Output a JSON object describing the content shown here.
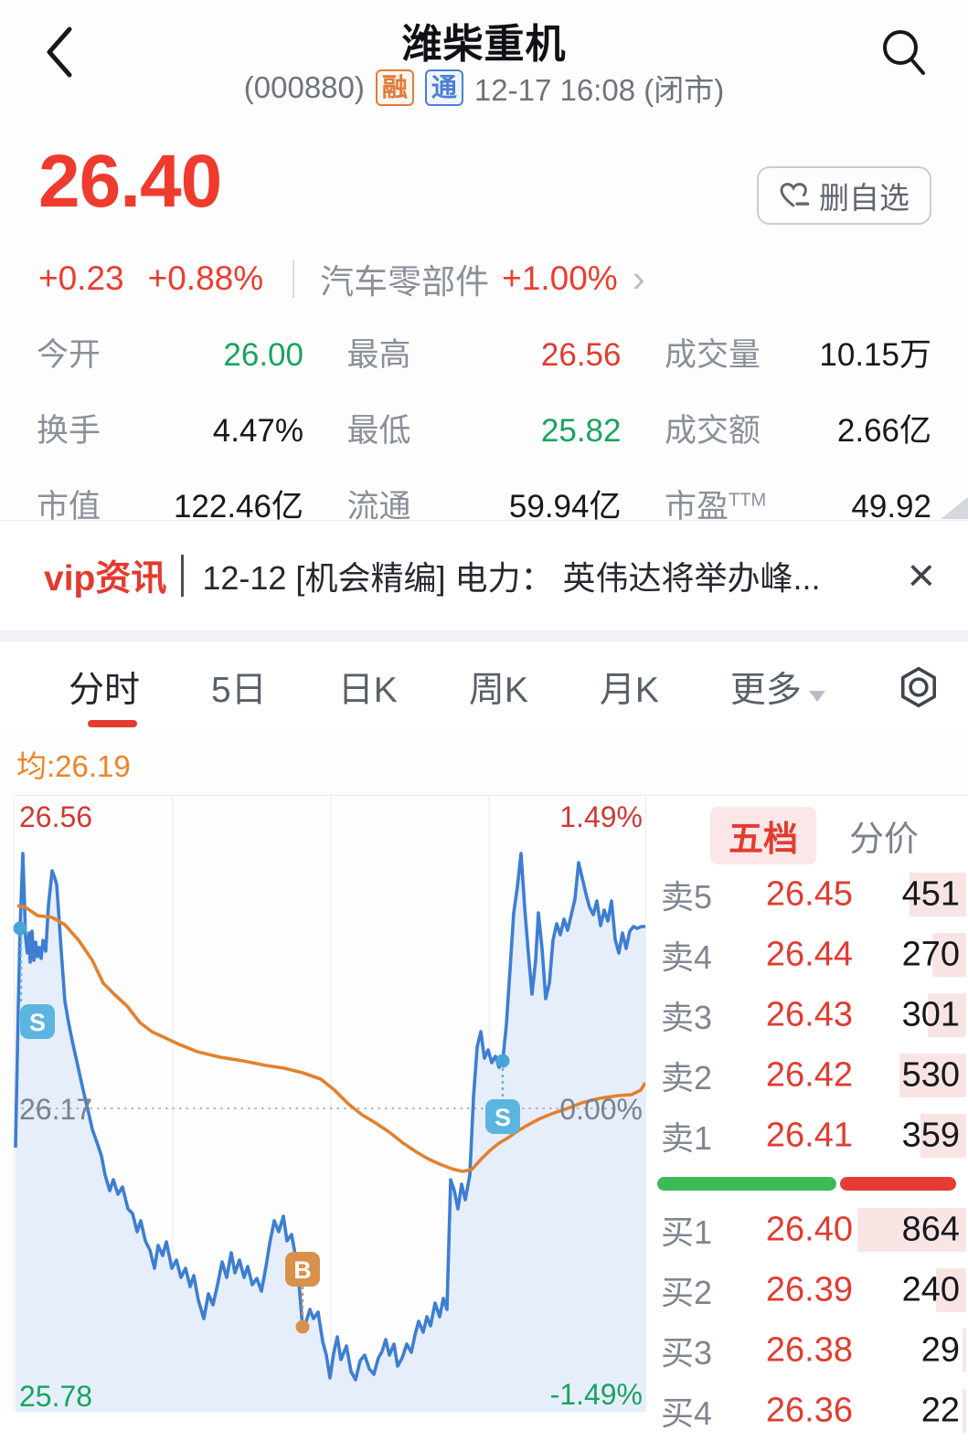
{
  "header": {
    "title": "潍柴重机",
    "code": "(000880)",
    "badge_margin": "融",
    "badge_connect": "通",
    "datetime": "12-17 16:08 (闭市)"
  },
  "quote": {
    "price": "26.40",
    "change": "+0.23",
    "change_pct": "+0.88%",
    "sector": "汽车零部件",
    "sector_pct": "+1.00%",
    "sector_chevron": "›",
    "watchlist_btn": "删自选"
  },
  "stats": [
    {
      "label": "今开",
      "value": "26.00"
    },
    {
      "label": "最高",
      "value": "26.56"
    },
    {
      "label": "成交量",
      "value": "10.15万"
    },
    {
      "label": "换手",
      "value": "4.47%"
    },
    {
      "label": "最低",
      "value": "25.82"
    },
    {
      "label": "成交额",
      "value": "2.66亿"
    },
    {
      "label": "市值",
      "value": "122.46亿"
    },
    {
      "label": "流通",
      "value": "59.94亿"
    },
    {
      "label": "市盈",
      "sup": "TTM",
      "value": "49.92"
    }
  ],
  "news": {
    "tag": "vip资讯",
    "text": "12-12 [机会精编] 电力： 英伟达将举办峰...",
    "close": "×"
  },
  "tabs": [
    {
      "label": "分时"
    },
    {
      "label": "5日"
    },
    {
      "label": "日K"
    },
    {
      "label": "周K"
    },
    {
      "label": "月K"
    },
    {
      "label": "更多"
    }
  ],
  "chart": {
    "avg_label": "均:26.19",
    "top_price": "26.56",
    "top_pct": "1.49%",
    "mid_price": "26.17",
    "mid_pct": "0.00%",
    "bottom_price": "25.78",
    "bottom_pct": "-1.49%",
    "markers": [
      {
        "label": "S"
      },
      {
        "label": "S"
      },
      {
        "label": "B"
      }
    ]
  },
  "chart_data": {
    "type": "line",
    "title": "分时 (intraday minute chart)",
    "open": 26.0,
    "high": 26.56,
    "low": 25.82,
    "close": 26.4,
    "avg": 26.19,
    "prev_close": 26.17,
    "ylim_price": [
      25.78,
      26.56
    ],
    "ylim_pct": [
      -1.49,
      1.49
    ],
    "grid": true,
    "series": [
      {
        "name": "price",
        "color": "#3d7ed3",
        "points": [
          [
            1,
            385
          ],
          [
            4,
            230
          ],
          [
            6,
            145
          ],
          [
            9,
            63
          ],
          [
            12,
            155
          ],
          [
            14,
            172
          ],
          [
            16,
            150
          ],
          [
            17,
            182
          ],
          [
            19,
            148
          ],
          [
            21,
            180
          ],
          [
            23,
            160
          ],
          [
            25,
            176
          ],
          [
            27,
            166
          ],
          [
            29,
            178
          ],
          [
            31,
            158
          ],
          [
            34,
            170
          ],
          [
            37,
            120
          ],
          [
            41,
            82
          ],
          [
            44,
            90
          ],
          [
            46,
            97
          ],
          [
            49,
            140
          ],
          [
            51,
            170
          ],
          [
            55,
            225
          ],
          [
            59,
            248
          ],
          [
            63,
            268
          ],
          [
            69,
            295
          ],
          [
            75,
            322
          ],
          [
            81,
            347
          ],
          [
            85,
            365
          ],
          [
            91,
            382
          ],
          [
            95,
            394
          ],
          [
            99,
            415
          ],
          [
            104,
            432
          ],
          [
            108,
            420
          ],
          [
            113,
            436
          ],
          [
            118,
            428
          ],
          [
            124,
            452
          ],
          [
            129,
            457
          ],
          [
            134,
            477
          ],
          [
            138,
            465
          ],
          [
            143,
            487
          ],
          [
            148,
            497
          ],
          [
            153,
            517
          ],
          [
            157,
            492
          ],
          [
            162,
            503
          ],
          [
            166,
            488
          ],
          [
            172,
            517
          ],
          [
            177,
            508
          ],
          [
            182,
            527
          ],
          [
            187,
            517
          ],
          [
            192,
            537
          ],
          [
            196,
            525
          ],
          [
            201,
            552
          ],
          [
            207,
            572
          ],
          [
            212,
            545
          ],
          [
            217,
            557
          ],
          [
            222,
            535
          ],
          [
            227,
            510
          ],
          [
            232,
            527
          ],
          [
            237,
            500
          ],
          [
            241,
            522
          ],
          [
            246,
            508
          ],
          [
            251,
            527
          ],
          [
            255,
            515
          ],
          [
            260,
            535
          ],
          [
            265,
            528
          ],
          [
            270,
            542
          ],
          [
            275,
            515
          ],
          [
            279,
            490
          ],
          [
            284,
            465
          ],
          [
            289,
            477
          ],
          [
            294,
            460
          ],
          [
            298,
            487
          ],
          [
            303,
            480
          ],
          [
            307,
            502
          ],
          [
            311,
            532
          ],
          [
            315,
            581
          ],
          [
            319,
            575
          ],
          [
            323,
            562
          ],
          [
            327,
            572
          ],
          [
            332,
            565
          ],
          [
            337,
            597
          ],
          [
            341,
            612
          ],
          [
            345,
            637
          ],
          [
            349,
            610
          ],
          [
            353,
            592
          ],
          [
            357,
            617
          ],
          [
            363,
            602
          ],
          [
            368,
            630
          ],
          [
            373,
            639
          ],
          [
            378,
            618
          ],
          [
            383,
            612
          ],
          [
            388,
            627
          ],
          [
            393,
            633
          ],
          [
            398,
            615
          ],
          [
            402,
            608
          ],
          [
            406,
            595
          ],
          [
            410,
            612
          ],
          [
            415,
            600
          ],
          [
            419,
            624
          ],
          [
            424,
            615
          ],
          [
            429,
            600
          ],
          [
            434,
            609
          ],
          [
            438,
            590
          ],
          [
            442,
            575
          ],
          [
            447,
            587
          ],
          [
            451,
            570
          ],
          [
            455,
            580
          ],
          [
            460,
            555
          ],
          [
            465,
            570
          ],
          [
            469,
            550
          ],
          [
            473,
            562
          ],
          [
            477,
            420
          ],
          [
            481,
            432
          ],
          [
            485,
            452
          ],
          [
            489,
            425
          ],
          [
            493,
            442
          ],
          [
            498,
            415
          ],
          [
            502,
            330
          ],
          [
            506,
            275
          ],
          [
            510,
            258
          ],
          [
            514,
            287
          ],
          [
            518,
            278
          ],
          [
            522,
            292
          ],
          [
            526,
            285
          ],
          [
            530,
            297
          ],
          [
            534,
            290
          ],
          [
            538,
            250
          ],
          [
            542,
            190
          ],
          [
            546,
            128
          ],
          [
            550,
            100
          ],
          [
            554,
            63
          ],
          [
            558,
            122
          ],
          [
            562,
            172
          ],
          [
            566,
            217
          ],
          [
            570,
            180
          ],
          [
            573,
            128
          ],
          [
            577,
            167
          ],
          [
            581,
            222
          ],
          [
            585,
            205
          ],
          [
            589,
            158
          ],
          [
            593,
            140
          ],
          [
            597,
            152
          ],
          [
            601,
            135
          ],
          [
            605,
            147
          ],
          [
            609,
            130
          ],
          [
            613,
            113
          ],
          [
            617,
            73
          ],
          [
            621,
            90
          ],
          [
            625,
            107
          ],
          [
            629,
            122
          ],
          [
            633,
            130
          ],
          [
            637,
            115
          ],
          [
            641,
            142
          ],
          [
            645,
            125
          ],
          [
            649,
            137
          ],
          [
            653,
            115
          ],
          [
            657,
            157
          ],
          [
            661,
            172
          ],
          [
            665,
            150
          ],
          [
            669,
            167
          ],
          [
            673,
            148
          ],
          [
            677,
            143
          ],
          [
            681,
            145
          ],
          [
            686,
            143
          ],
          [
            690,
            143
          ]
        ]
      },
      {
        "name": "avg",
        "color": "#e2812d",
        "points": [
          [
            3,
            120
          ],
          [
            12,
            122
          ],
          [
            25,
            131
          ],
          [
            41,
            133
          ],
          [
            55,
            141
          ],
          [
            70,
            158
          ],
          [
            85,
            180
          ],
          [
            97,
            205
          ],
          [
            110,
            218
          ],
          [
            123,
            230
          ],
          [
            137,
            248
          ],
          [
            150,
            258
          ],
          [
            163,
            264
          ],
          [
            180,
            272
          ],
          [
            200,
            280
          ],
          [
            225,
            286
          ],
          [
            250,
            290
          ],
          [
            275,
            295
          ],
          [
            295,
            298
          ],
          [
            315,
            303
          ],
          [
            335,
            310
          ],
          [
            350,
            322
          ],
          [
            365,
            337
          ],
          [
            380,
            349
          ],
          [
            395,
            358
          ],
          [
            410,
            368
          ],
          [
            425,
            380
          ],
          [
            440,
            390
          ],
          [
            452,
            397
          ],
          [
            465,
            403
          ],
          [
            478,
            408
          ],
          [
            490,
            411
          ],
          [
            500,
            409
          ],
          [
            510,
            398
          ],
          [
            520,
            388
          ],
          [
            530,
            380
          ],
          [
            540,
            374
          ],
          [
            550,
            367
          ],
          [
            560,
            361
          ],
          [
            575,
            353
          ],
          [
            590,
            347
          ],
          [
            605,
            342
          ],
          [
            620,
            336
          ],
          [
            640,
            331
          ],
          [
            660,
            328
          ],
          [
            675,
            327
          ],
          [
            685,
            322
          ],
          [
            690,
            314
          ]
        ]
      }
    ],
    "markers": [
      {
        "type": "sell",
        "label": "S",
        "x": 6,
        "y": 145,
        "badge_x": 6,
        "badge_y": 228
      },
      {
        "type": "sell",
        "label": "S",
        "x": 534,
        "y": 290,
        "badge_x": 516,
        "badge_y": 332
      },
      {
        "type": "buy",
        "label": "B",
        "x": 315,
        "y": 581,
        "badge_x": 297,
        "badge_y": 499
      }
    ]
  },
  "orderbook": {
    "tab_five": "五档",
    "tab_price": "分价",
    "sells": [
      {
        "label": "卖5",
        "price": "26.45",
        "vol": 451
      },
      {
        "label": "卖4",
        "price": "26.44",
        "vol": 270
      },
      {
        "label": "卖3",
        "price": "26.43",
        "vol": 301
      },
      {
        "label": "卖2",
        "price": "26.42",
        "vol": 530
      },
      {
        "label": "卖1",
        "price": "26.41",
        "vol": 359
      }
    ],
    "buys": [
      {
        "label": "买1",
        "price": "26.40",
        "vol": 864
      },
      {
        "label": "买2",
        "price": "26.39",
        "vol": 240
      },
      {
        "label": "买3",
        "price": "26.38",
        "vol": 29
      },
      {
        "label": "买4",
        "price": "26.36",
        "vol": 22
      }
    ],
    "ratio": {
      "green": 0.607,
      "red": 0.393
    }
  }
}
